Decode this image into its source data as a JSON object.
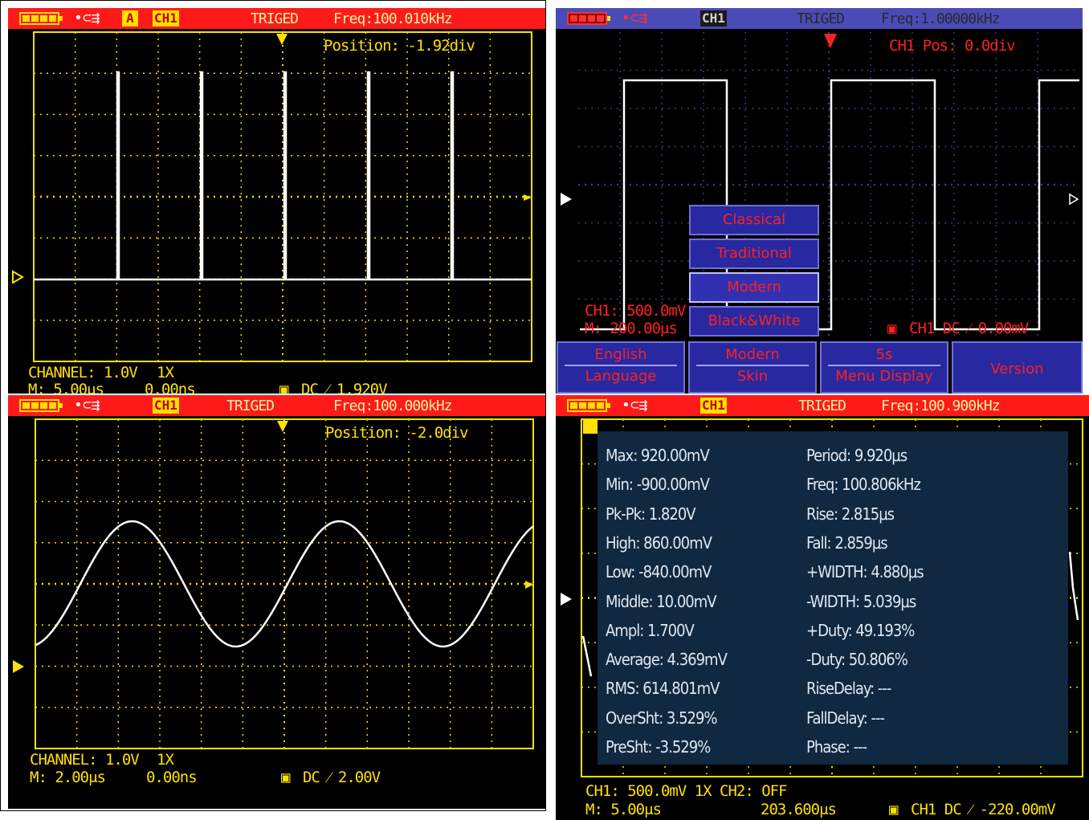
{
  "screen1": {
    "trig": "TRIGED",
    "freq": "Freq:100.010kHz",
    "ch_tag": "CH1",
    "a_tag": "A",
    "position": "Position: -1.92div",
    "channel_line": "CHANNEL: 1.0V",
    "probe": "1X",
    "timebase": "M: 5.00μs",
    "offset": "0.00ns",
    "trigger_info": "DC ⁄ 1.920V",
    "trace_color": "#ffffff",
    "grid_color": "#ffe000"
  },
  "screen2": {
    "trig": "TRIGED",
    "freq": "Freq:1.00000kHz",
    "ch_tag": "CH1",
    "pos": "CH1 Pos: 0.0div",
    "ch_scale": "CH1: 500.0mV",
    "timebase": "M: 200.00μs",
    "trigger_info": "CH1 DC ⁄ 0.00mV",
    "skin_menu": [
      "Classical",
      "Traditional",
      "Modern",
      "Black&White"
    ],
    "softkeys": [
      {
        "value": "English",
        "title": "Language"
      },
      {
        "value": "Modern",
        "title": "Skin"
      },
      {
        "value": "5s",
        "title": "Menu Display"
      },
      {
        "value": "Version",
        "title": ""
      }
    ]
  },
  "screen3": {
    "trig": "TRIGED",
    "freq": "Freq:100.000kHz",
    "ch_tag": "CH1",
    "position": "Position: -2.0div",
    "channel_line": "CHANNEL: 1.0V",
    "probe": "1X",
    "timebase": "M: 2.00μs",
    "offset": "0.00ns",
    "trigger_info": "DC ⁄ 2.00V"
  },
  "screen4": {
    "trig": "TRIGED",
    "freq": "Freq:100.900kHz",
    "ch_tag": "CH1",
    "measurements_left": [
      "Max: 920.00mV",
      "Min: -900.00mV",
      "Pk-Pk: 1.820V",
      "High: 860.00mV",
      "Low: -840.00mV",
      "Middle: 10.00mV",
      "Ampl: 1.700V",
      "Average: 4.369mV",
      "RMS: 614.801mV",
      "OverSht: 3.529%",
      "PreSht: -3.529%"
    ],
    "measurements_right": [
      "Period: 9.920μs",
      "Freq: 100.806kHz",
      "Rise: 2.815μs",
      "Fall: 2.859μs",
      "+WIDTH: 4.880μs",
      "-WIDTH: 5.039μs",
      "+Duty: 49.193%",
      "-Duty: 50.806%",
      "RiseDelay: ---",
      "FallDelay: ---",
      "Phase: ---"
    ],
    "ch1_line": "CH1: 500.0mV 1X  CH2: OFF",
    "timebase": "M: 5.00μs",
    "offset": "203.600μs",
    "trigger_info": "CH1 DC ⁄ -220.00mV"
  }
}
